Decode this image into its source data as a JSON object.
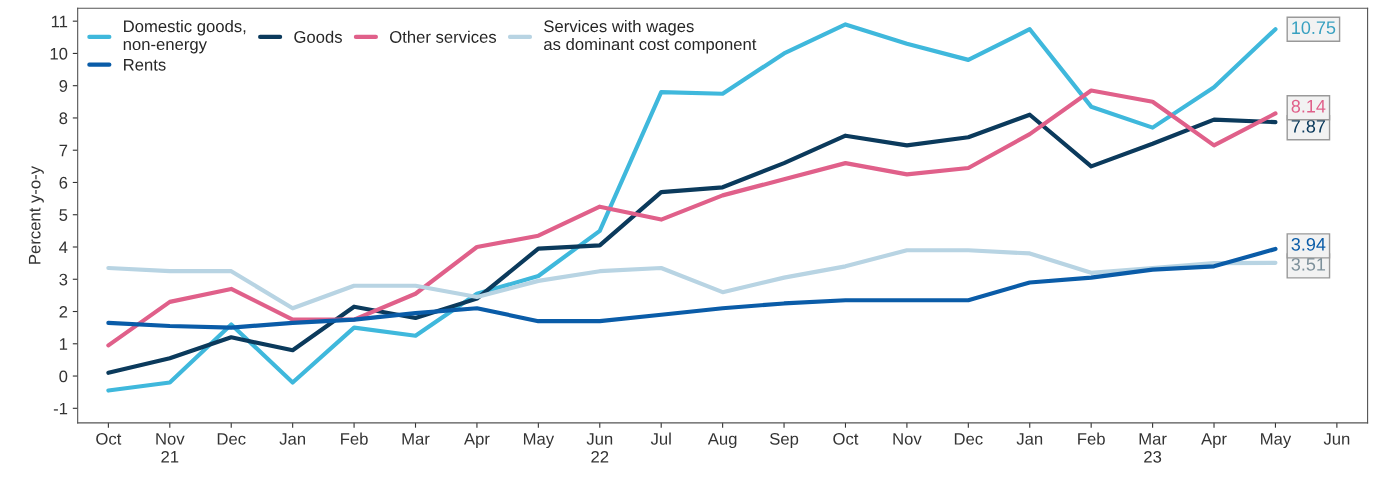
{
  "chart_data": {
    "type": "line",
    "ylabel": "Percent y-o-y",
    "categories": [
      "Oct",
      "Nov\n21",
      "Dec",
      "Jan",
      "Feb",
      "Mar",
      "Apr",
      "May",
      "Jun\n22",
      "Jul",
      "Aug",
      "Sep",
      "Oct",
      "Nov",
      "Dec",
      "Jan",
      "Feb",
      "Mar\n23",
      "Apr",
      "May",
      "Jun"
    ],
    "series": [
      {
        "name": "Domestic goods,\nnon-energy",
        "color": "#3fb8dc",
        "values": [
          -0.45,
          -0.2,
          1.6,
          -0.2,
          1.5,
          1.25,
          2.55,
          3.1,
          4.5,
          8.8,
          8.75,
          10.0,
          10.9,
          10.3,
          9.8,
          10.75,
          8.35,
          7.7,
          8.95,
          10.75,
          null
        ],
        "value_labels": [
          null,
          null,
          null,
          null,
          null,
          null,
          null,
          null,
          null,
          null,
          null,
          null,
          null,
          null,
          null,
          null,
          null,
          null,
          null,
          "10.75",
          null
        ]
      },
      {
        "name": "Goods",
        "color": "#0b3a5c",
        "values": [
          0.1,
          0.55,
          1.2,
          0.8,
          2.15,
          1.8,
          2.4,
          3.95,
          4.05,
          5.7,
          5.85,
          6.6,
          7.45,
          7.15,
          7.4,
          8.1,
          6.5,
          7.2,
          7.95,
          7.87,
          null
        ],
        "value_labels": [
          null,
          null,
          null,
          null,
          null,
          null,
          null,
          null,
          null,
          null,
          null,
          null,
          null,
          null,
          null,
          null,
          null,
          null,
          null,
          "7.87",
          null
        ]
      },
      {
        "name": "Other services",
        "color": "#e0608a",
        "values": [
          0.95,
          2.3,
          2.7,
          1.75,
          1.75,
          2.55,
          4.0,
          4.35,
          5.25,
          4.85,
          5.6,
          6.1,
          6.6,
          6.25,
          6.45,
          7.5,
          8.85,
          8.5,
          7.15,
          8.14,
          null
        ],
        "value_labels": [
          null,
          null,
          null,
          null,
          null,
          null,
          null,
          null,
          null,
          null,
          null,
          null,
          null,
          null,
          null,
          null,
          null,
          null,
          null,
          "8.14",
          null
        ]
      },
      {
        "name": "Services with wages\nas dominant cost component",
        "color": "#b8d4e3",
        "values": [
          3.35,
          3.25,
          3.25,
          2.1,
          2.8,
          2.8,
          2.45,
          2.95,
          3.25,
          3.35,
          2.6,
          3.05,
          3.4,
          3.9,
          3.9,
          3.8,
          3.2,
          3.35,
          3.5,
          3.51,
          null
        ],
        "value_labels": [
          null,
          null,
          null,
          null,
          null,
          null,
          null,
          null,
          null,
          null,
          null,
          null,
          null,
          null,
          null,
          null,
          null,
          null,
          null,
          "3.51",
          null
        ]
      },
      {
        "name": "Rents",
        "color": "#0a5ca8",
        "values": [
          1.65,
          1.55,
          1.5,
          1.65,
          1.75,
          1.95,
          2.1,
          1.7,
          1.7,
          1.9,
          2.1,
          2.25,
          2.35,
          2.35,
          2.35,
          2.9,
          3.05,
          3.3,
          3.4,
          3.94,
          null
        ],
        "value_labels": [
          null,
          null,
          null,
          null,
          null,
          null,
          null,
          null,
          null,
          null,
          null,
          null,
          null,
          null,
          null,
          null,
          null,
          null,
          null,
          "3.94",
          null
        ]
      }
    ],
    "ylim": [
      -1.45,
      11.4
    ],
    "yticks": [
      -1,
      0,
      1,
      2,
      3,
      4,
      5,
      6,
      7,
      8,
      9,
      10,
      11
    ],
    "grid": false,
    "legend": "top left",
    "marker": "none",
    "line_style": "solid"
  }
}
